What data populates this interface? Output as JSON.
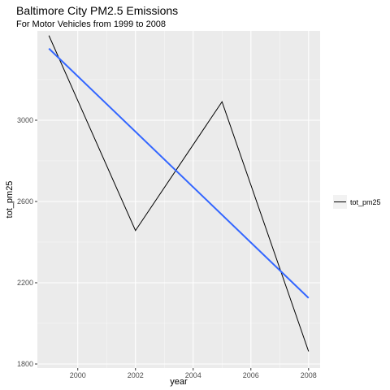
{
  "title": "Baltimore City PM2.5 Emissions",
  "subtitle": "For Motor Vehicles from 1999 to 2008",
  "chart_data": {
    "type": "line",
    "title": "Baltimore City PM2.5 Emissions",
    "subtitle": "For Motor Vehicles from 1999 to 2008",
    "xlabel": "year",
    "ylabel": "tot_pm25",
    "xlim": [
      1998.6,
      2008.4
    ],
    "ylim": [
      1780,
      3440
    ],
    "x_ticks": [
      2000,
      2002,
      2004,
      2006,
      2008
    ],
    "y_ticks": [
      1800,
      2200,
      2600,
      3000
    ],
    "x_tick_labels": [
      "2000",
      "2002",
      "2004",
      "2006",
      "2008"
    ],
    "y_tick_labels": [
      "1800",
      "2200",
      "2600",
      "3000"
    ],
    "grid": true,
    "legend_position": "right",
    "series": [
      {
        "name": "tot_pm25",
        "color": "#000000",
        "x": [
          1999,
          2002,
          2005,
          2008
        ],
        "y": [
          3417,
          2457,
          3091,
          1862
        ]
      }
    ],
    "trend_line": {
      "color": "#3366ff",
      "x": [
        1999,
        2008
      ],
      "y": [
        3353,
        2125
      ]
    }
  }
}
